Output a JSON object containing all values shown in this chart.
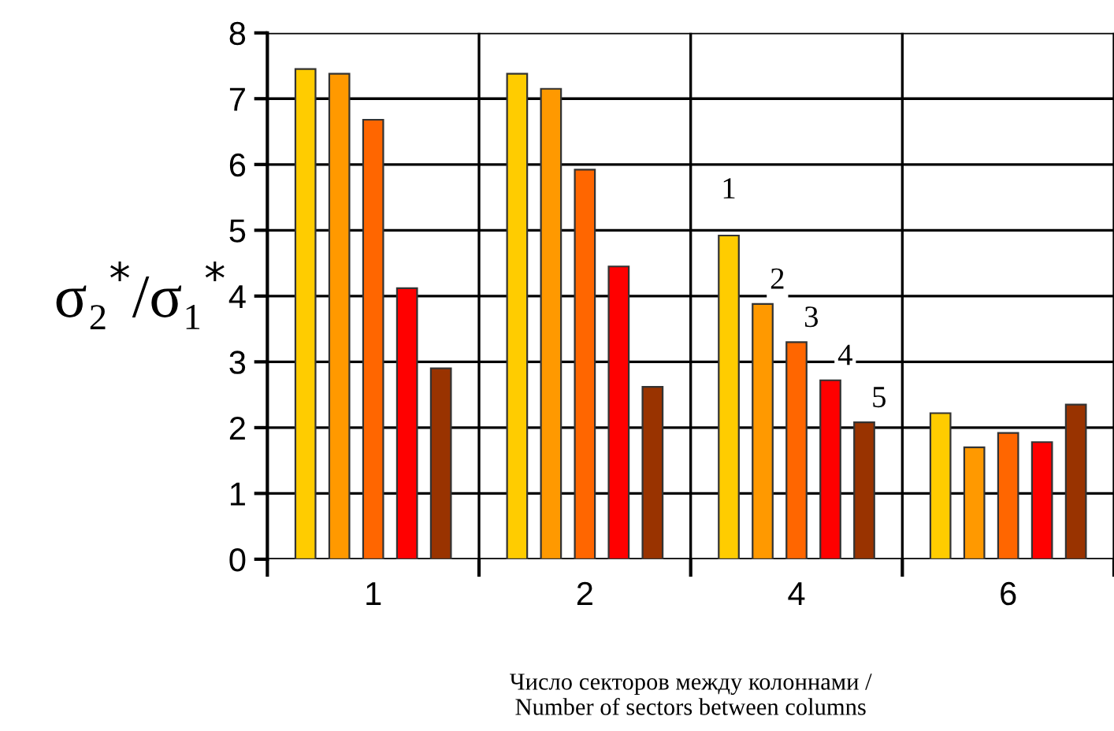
{
  "chart_data": {
    "type": "bar",
    "categories": [
      "1",
      "2",
      "4",
      "6"
    ],
    "series": [
      {
        "name": "1",
        "color": "#ffcc00",
        "values": [
          7.45,
          7.38,
          4.92,
          2.22
        ]
      },
      {
        "name": "2",
        "color": "#ff9900",
        "values": [
          7.38,
          7.15,
          3.88,
          1.7
        ]
      },
      {
        "name": "3",
        "color": "#ff6600",
        "values": [
          6.68,
          5.92,
          3.3,
          1.92
        ]
      },
      {
        "name": "4",
        "color": "#ff0000",
        "values": [
          4.12,
          4.45,
          2.72,
          1.78
        ]
      },
      {
        "name": "5",
        "color": "#993300",
        "values": [
          2.9,
          2.62,
          2.08,
          2.35
        ]
      }
    ],
    "ylim": [
      0,
      8
    ],
    "yticks": [
      0,
      1,
      2,
      3,
      4,
      5,
      6,
      7,
      8
    ],
    "grid": true,
    "ylabel": "σ₂$^{*}$/σ₁$^{*}$",
    "xlabel": "Число секторов между колоннами /\nNumber of sectors between columns"
  }
}
